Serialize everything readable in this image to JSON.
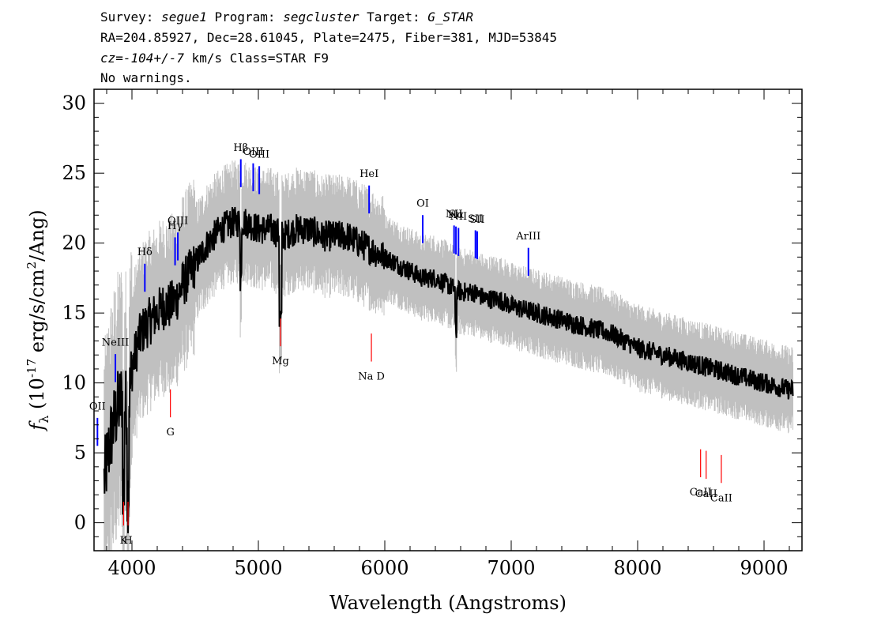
{
  "header": {
    "line1_prefix": "Survey: ",
    "survey": "segue1",
    "line1_mid": " Program: ",
    "program": "segcluster",
    "line1_mid2": " Target: ",
    "target": "G_STAR",
    "line2": "RA=204.85927, Dec=28.61045, Plate=2475, Fiber=381, MJD=53845",
    "line3_prefix": "cz=",
    "cz": "-104+/-7",
    "line3_suffix": " km/s Class=STAR F9",
    "line4": "No warnings."
  },
  "chart_data": {
    "type": "line",
    "xlabel": "Wavelength (Angstroms)",
    "ylabel_main": "f",
    "ylabel_sub": "λ",
    "ylabel_rest1": " (10",
    "ylabel_exp": "-17",
    "ylabel_rest2": " erg/s/cm",
    "ylabel_exp2": "2",
    "ylabel_rest3": "/Ang)",
    "xlim": [
      3700,
      9300
    ],
    "ylim": [
      -2,
      31
    ],
    "x_ticks": [
      4000,
      5000,
      6000,
      7000,
      8000,
      9000
    ],
    "x_tick_labels": [
      "4000",
      "5000",
      "6000",
      "7000",
      "8000",
      "9000"
    ],
    "y_ticks": [
      0,
      5,
      10,
      15,
      20,
      25,
      30
    ],
    "y_tick_labels": [
      "0",
      "5",
      "10",
      "15",
      "20",
      "25",
      "30"
    ],
    "colors": {
      "flux": "#000000",
      "error": "#c0c0c0",
      "emission": "#0000ff",
      "absorption": "#ff0000"
    },
    "flux_continuum": {
      "x": [
        3780,
        3830,
        3880,
        3920,
        3970,
        4000,
        4050,
        4100,
        4150,
        4200,
        4250,
        4300,
        4350,
        4400,
        4500,
        4600,
        4700,
        4800,
        4900,
        5000,
        5100,
        5200,
        5300,
        5400,
        5500,
        5600,
        5700,
        5800,
        5900,
        6000,
        6100,
        6200,
        6300,
        6400,
        6500,
        6600,
        6700,
        6800,
        6900,
        7000,
        7200,
        7400,
        7600,
        7800,
        8000,
        8200,
        8400,
        8600,
        8800,
        9000,
        9200
      ],
      "y": [
        3,
        6,
        8,
        9,
        8,
        11,
        13,
        14,
        14.5,
        15,
        15.5,
        15.5,
        16,
        17,
        18.5,
        20,
        21,
        21.5,
        21.5,
        21,
        21,
        20.5,
        21,
        21,
        20.5,
        20.5,
        20.5,
        20,
        19.5,
        19,
        18.5,
        18,
        17.5,
        17.5,
        17,
        16.5,
        16.5,
        16,
        16,
        15.5,
        15,
        14.5,
        14,
        13.5,
        12.5,
        12,
        11.5,
        11,
        10.5,
        10,
        9.5
      ]
    },
    "emission_lines": [
      {
        "label": "OII",
        "x": 3727
      },
      {
        "label": "NeIII",
        "x": 3869
      },
      {
        "label": "Hδ",
        "x": 4102
      },
      {
        "label": "Hγ",
        "x": 4341
      },
      {
        "label": "OIII",
        "x": 4363
      },
      {
        "label": "Hβ",
        "x": 4861
      },
      {
        "label": "OIII",
        "x": 4959
      },
      {
        "label": "OIII",
        "x": 5007
      },
      {
        "label": "HeI",
        "x": 5876
      },
      {
        "label": "OI",
        "x": 6300
      },
      {
        "label": "NII",
        "x": 6548
      },
      {
        "label": "Hα",
        "x": 6563
      },
      {
        "label": "NII",
        "x": 6583
      },
      {
        "label": "SII",
        "x": 6717
      },
      {
        "label": "SII",
        "x": 6731
      },
      {
        "label": "ArIII",
        "x": 7136
      }
    ],
    "absorption_lines": [
      {
        "label": "K",
        "x": 3934
      },
      {
        "label": "H",
        "x": 3969
      },
      {
        "label": "G",
        "x": 4304
      },
      {
        "label": "Mg",
        "x": 5175
      },
      {
        "label": "Na D",
        "x": 5894
      },
      {
        "label": "CaII",
        "x": 8498
      },
      {
        "label": "CaII",
        "x": 8542
      },
      {
        "label": "CaII",
        "x": 8662
      }
    ]
  }
}
